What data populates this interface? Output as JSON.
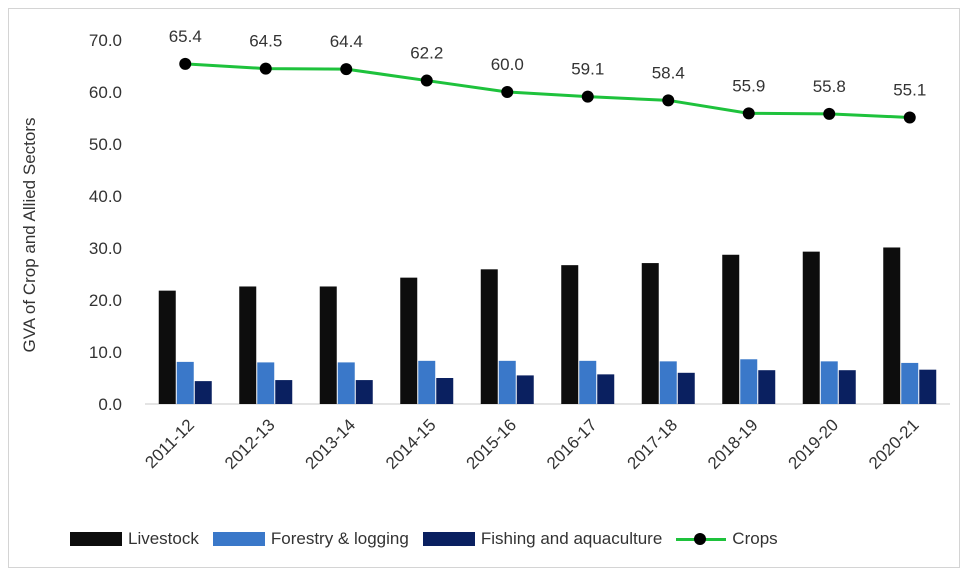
{
  "chart_data": {
    "type": "bar",
    "categories": [
      "2011-12",
      "2012-13",
      "2013-14",
      "2014-15",
      "2015-16",
      "2016-17",
      "2017-18",
      "2018-19",
      "2019-20",
      "2020-21"
    ],
    "ylabel": "GVA of Crop and Allied Sectors",
    "ylim": [
      0,
      70
    ],
    "yticks": [
      "0.0",
      "10.0",
      "20.0",
      "30.0",
      "40.0",
      "50.0",
      "60.0",
      "70.0"
    ],
    "grid": false,
    "legend_position": "bottom",
    "series": [
      {
        "name": "Livestock",
        "kind": "bar",
        "color": "#0d0d0d",
        "values": [
          21.8,
          22.6,
          22.6,
          24.3,
          25.9,
          26.7,
          27.1,
          28.7,
          29.3,
          30.1
        ]
      },
      {
        "name": "Forestry & logging",
        "kind": "bar",
        "color": "#3a78c9",
        "values": [
          8.1,
          8.0,
          8.0,
          8.3,
          8.3,
          8.3,
          8.2,
          8.6,
          8.2,
          7.9
        ]
      },
      {
        "name": "Fishing and aquaculture",
        "kind": "bar",
        "color": "#0a2060",
        "values": [
          4.4,
          4.6,
          4.6,
          5.0,
          5.5,
          5.7,
          6.0,
          6.5,
          6.5,
          6.6
        ]
      },
      {
        "name": "Crops",
        "kind": "line",
        "color": "#1ec23c",
        "values": [
          65.4,
          64.5,
          64.4,
          62.2,
          60.0,
          59.1,
          58.4,
          55.9,
          55.8,
          55.1
        ],
        "labels": [
          "65.4",
          "64.5",
          "64.4",
          "62.2",
          "60.0",
          "59.1",
          "58.4",
          "55.9",
          "55.8",
          "55.1"
        ]
      }
    ]
  }
}
